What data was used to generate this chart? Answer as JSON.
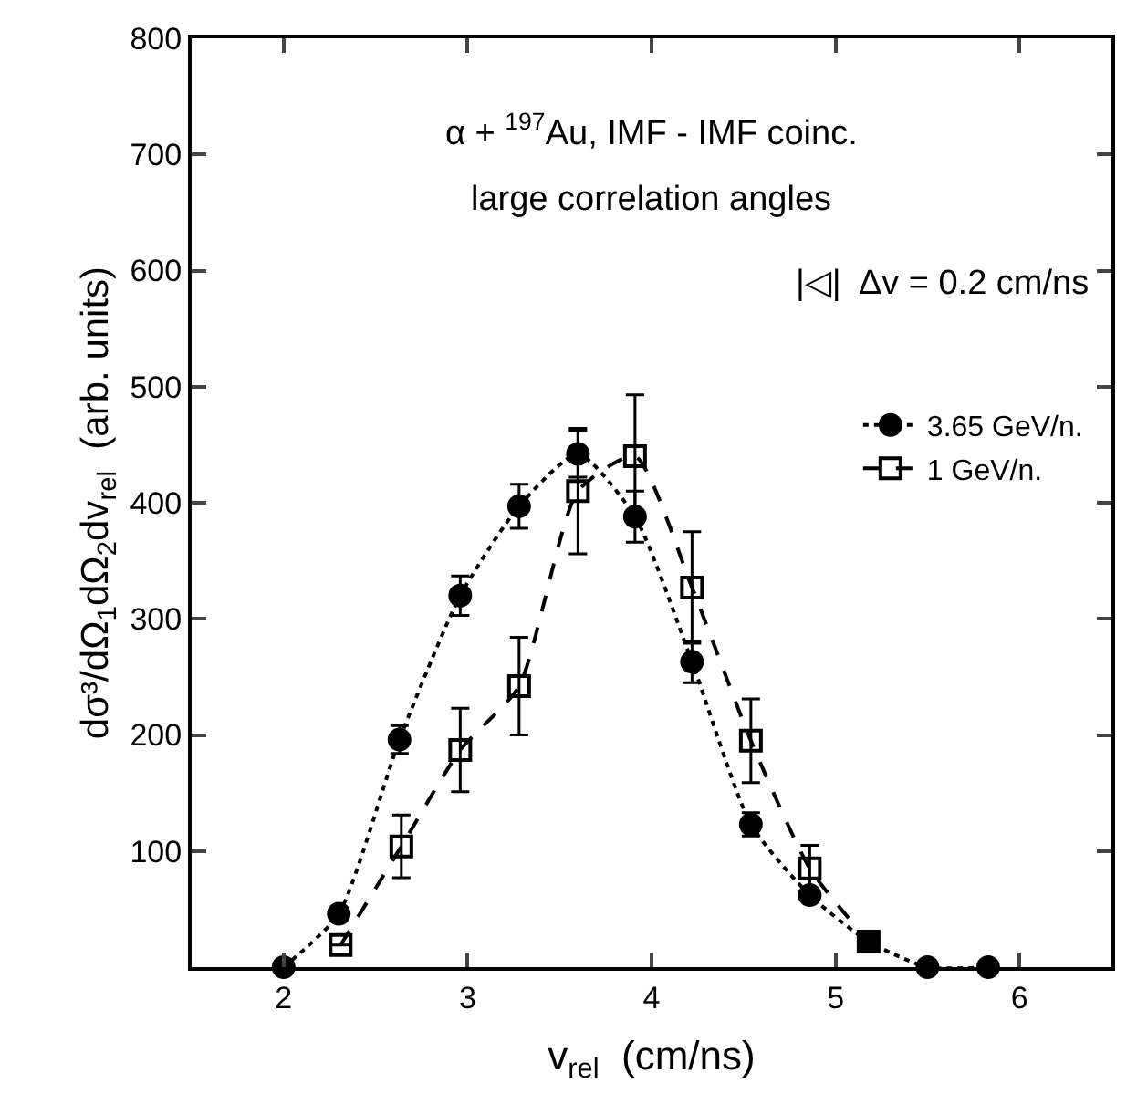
{
  "chart_data": {
    "type": "line",
    "xlabel": "v$_{rel}$  (cm/ns)",
    "ylabel": "dσ³/dΩ$_{1}$dΩ$_{2}$dv$_{rel}$  (arb. units)",
    "annotations": [
      "α + $^{197}$Au, IMF - IMF coinc.",
      "large correlation angles",
      "|◁|  Δv = 0.2 cm/ns"
    ],
    "xlim": [
      1.5,
      6.5
    ],
    "xticks": [
      2,
      3,
      4,
      5,
      6
    ],
    "ylim": [
      0,
      800
    ],
    "yticks": [
      100,
      200,
      300,
      400,
      500,
      600,
      700,
      800
    ],
    "legend": "right",
    "series": [
      {
        "name": "3.65 GeV/n.",
        "color": "#000000",
        "marker": "circle",
        "line_style": "dotted",
        "x": [
          2.0,
          2.3,
          2.63,
          2.96,
          3.28,
          3.6,
          3.91,
          4.22,
          4.54,
          4.86,
          5.18,
          5.5,
          5.83
        ],
        "values": [
          0,
          46,
          196,
          320,
          397,
          442,
          388,
          263,
          123,
          62,
          22,
          0,
          0
        ],
        "errors": [
          null,
          null,
          12,
          17,
          19,
          20,
          22,
          18,
          10,
          null,
          null,
          null,
          null
        ]
      },
      {
        "name": "1 GeV/n.",
        "color": "#000000",
        "marker": "square",
        "line_style": "dashed",
        "x": [
          2.31,
          2.64,
          2.96,
          3.28,
          3.6,
          3.91,
          4.22,
          4.54,
          4.86,
          5.18
        ],
        "values": [
          19,
          104,
          187,
          242,
          410,
          440,
          327,
          195,
          85,
          22
        ],
        "errors": [
          null,
          27,
          36,
          42,
          54,
          53,
          48,
          36,
          20,
          null
        ]
      }
    ]
  }
}
